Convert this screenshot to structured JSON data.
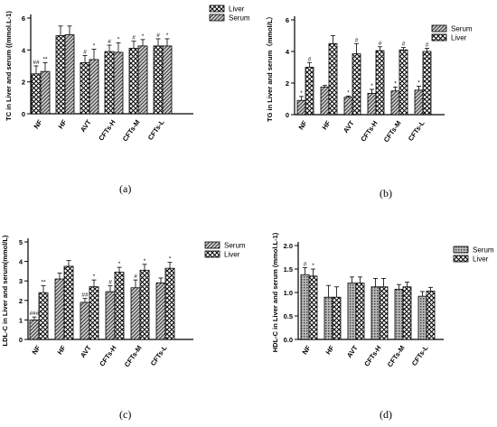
{
  "patterns": {
    "cross": "crosshatch",
    "diag": "diagonal-stripes",
    "dots": "dense-dots"
  },
  "colors": {
    "ink": "#000000",
    "gray": "#888888",
    "white": "#ffffff"
  },
  "chart_data": [
    {
      "panel_label": "(a)",
      "type": "bar",
      "ylabel": "TC in Liver and serum ((mmol.L-1)",
      "xlabel": "",
      "categories": [
        "NF",
        "HF",
        "AVT",
        "CFTs-H",
        "CFTs-M",
        "CFTs-L"
      ],
      "ylim": [
        0,
        6
      ],
      "yticks": [
        0,
        2,
        4,
        6
      ],
      "legend": "top-right",
      "series": [
        {
          "name": "Liver",
          "pattern": "cross",
          "values": [
            2.5,
            4.9,
            3.2,
            3.9,
            4.1,
            4.25
          ],
          "errors": [
            0.5,
            0.6,
            0.45,
            0.4,
            0.45,
            0.45
          ],
          "annotations": [
            "##",
            "",
            "#",
            "#",
            "#",
            "#"
          ]
        },
        {
          "name": "Serum",
          "pattern": "diag",
          "values": [
            2.65,
            4.95,
            3.4,
            3.85,
            4.25,
            4.25
          ],
          "errors": [
            0.55,
            0.55,
            0.65,
            0.6,
            0.4,
            0.45
          ],
          "annotations": [
            "**",
            "",
            "*",
            "*",
            "*",
            "*"
          ]
        }
      ]
    },
    {
      "panel_label": "(b)",
      "type": "bar",
      "ylabel": "TG in Liver and serum（mmol/L）",
      "xlabel": "",
      "categories": [
        "NF",
        "HF",
        "AVT",
        "CFTs-H",
        "CFTs-M",
        "CFTs-L"
      ],
      "ylim": [
        0,
        6
      ],
      "yticks": [
        0,
        2,
        4,
        6
      ],
      "legend": "top-right",
      "series": [
        {
          "name": "Serum",
          "pattern": "diag",
          "values": [
            0.9,
            1.75,
            1.1,
            1.35,
            1.5,
            1.55
          ],
          "errors": [
            0.25,
            0.1,
            0.08,
            0.25,
            0.25,
            0.25
          ],
          "annotations": [
            "*",
            "",
            "*",
            "*",
            "*",
            "*"
          ]
        },
        {
          "name": "Liver",
          "pattern": "cross",
          "values": [
            3.0,
            4.5,
            3.85,
            4.05,
            4.1,
            4.0
          ],
          "errors": [
            0.3,
            0.5,
            0.65,
            0.25,
            0.15,
            0.2
          ],
          "annotations": [
            "#",
            "",
            "#",
            "#",
            "#",
            "#"
          ]
        }
      ]
    },
    {
      "panel_label": "(c)",
      "type": "bar",
      "ylabel": "LDL-C in Liver and serum(mmol/L)",
      "xlabel": "",
      "categories": [
        "NF",
        "HF",
        "AVT",
        "CFTs-H",
        "CFTs-M",
        "CFTs-L"
      ],
      "ylim": [
        0,
        5
      ],
      "yticks": [
        0,
        1,
        2,
        3,
        4,
        5
      ],
      "legend": "top-right",
      "series": [
        {
          "name": "Serum",
          "pattern": "diag",
          "values": [
            1.0,
            3.1,
            1.9,
            2.45,
            2.65,
            2.9
          ],
          "errors": [
            0.15,
            0.3,
            0.2,
            0.3,
            0.4,
            0.25
          ],
          "annotations": [
            "###",
            "",
            "##",
            "#",
            "#",
            ""
          ]
        },
        {
          "name": "Liver",
          "pattern": "cross",
          "values": [
            2.4,
            3.75,
            2.7,
            3.45,
            3.55,
            3.65
          ],
          "errors": [
            0.35,
            0.3,
            0.35,
            0.25,
            0.3,
            0.3
          ],
          "annotations": [
            "**",
            "",
            "*",
            "*",
            "*",
            "*"
          ]
        }
      ]
    },
    {
      "panel_label": "(d)",
      "type": "bar",
      "ylabel": "HDL-C in Liver and serum (mmol.L-1)",
      "xlabel": "",
      "categories": [
        "NF",
        "HF",
        "AVT",
        "CFTs-H",
        "CFTs-M",
        "CFTs-L"
      ],
      "ylim": [
        0,
        2.0
      ],
      "yticks": [
        0.0,
        0.5,
        1.0,
        1.5,
        2.0
      ],
      "legend": "top-right",
      "series": [
        {
          "name": "Serum",
          "pattern": "dots",
          "values": [
            1.38,
            0.9,
            1.2,
            1.12,
            1.07,
            0.92
          ],
          "errors": [
            0.15,
            0.25,
            0.13,
            0.18,
            0.1,
            0.1
          ],
          "annotations": [
            "#",
            "",
            "",
            "",
            "",
            ""
          ]
        },
        {
          "name": "Liver",
          "pattern": "cross",
          "values": [
            1.35,
            0.9,
            1.2,
            1.12,
            1.12,
            1.03
          ],
          "errors": [
            0.15,
            0.22,
            0.13,
            0.18,
            0.1,
            0.08
          ],
          "annotations": [
            "*",
            "",
            "",
            "",
            "",
            ""
          ]
        }
      ]
    }
  ]
}
